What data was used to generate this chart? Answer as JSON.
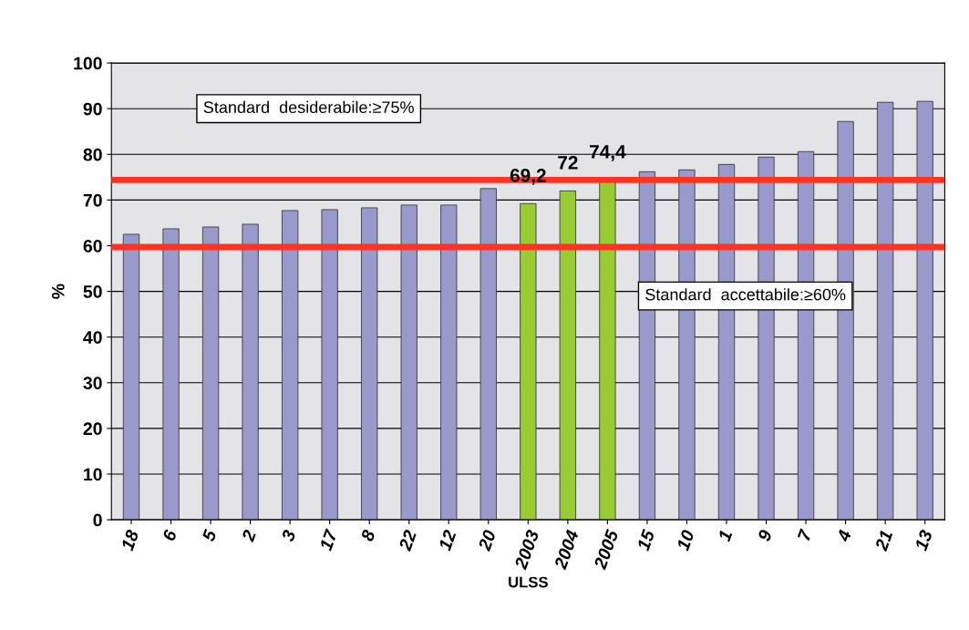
{
  "chart_data": {
    "type": "bar",
    "xlabel": "ULSS",
    "ylabel": "%",
    "categories": [
      "18",
      "6",
      "5",
      "2",
      "3",
      "17",
      "8",
      "22",
      "12",
      "20",
      "2003",
      "2004",
      "2005",
      "15",
      "10",
      "1",
      "9",
      "7",
      "4",
      "21",
      "13"
    ],
    "values": [
      62.5,
      63.7,
      64.1,
      64.7,
      67.7,
      67.9,
      68.3,
      68.9,
      68.9,
      72.5,
      69.2,
      72,
      74.4,
      76.2,
      76.6,
      77.8,
      79.4,
      80.6,
      87.2,
      91.4,
      91.6
    ],
    "colors": [
      "#9999cc",
      "#9999cc",
      "#9999cc",
      "#9999cc",
      "#9999cc",
      "#9999cc",
      "#9999cc",
      "#9999cc",
      "#9999cc",
      "#9999cc",
      "#99cc33",
      "#99cc33",
      "#99cc33",
      "#9999cc",
      "#9999cc",
      "#9999cc",
      "#9999cc",
      "#9999cc",
      "#9999cc",
      "#9999cc",
      "#9999cc"
    ],
    "value_labels": [
      null,
      null,
      null,
      null,
      null,
      null,
      null,
      null,
      null,
      null,
      "69,2",
      "72",
      "74,4",
      null,
      null,
      null,
      null,
      null,
      null,
      null,
      null
    ],
    "ylim": [
      0,
      100
    ],
    "yticks": [
      0,
      10,
      20,
      30,
      40,
      50,
      60,
      70,
      80,
      90,
      100
    ],
    "grid": "y",
    "annotations": [
      "Standard  desiderabile:≥75%",
      "Standard  accettabile:≥60%"
    ],
    "ref_lines": [
      {
        "axis": "y",
        "value": 74.4,
        "color": "#ff3322"
      },
      {
        "axis": "y",
        "value": 59.7,
        "color": "#ff3322"
      }
    ]
  }
}
